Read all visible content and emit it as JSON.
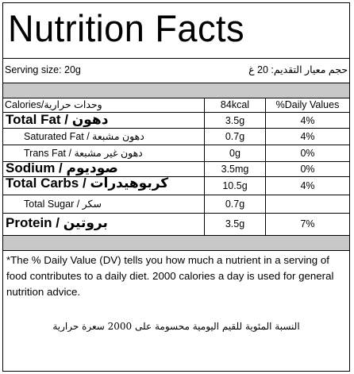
{
  "title": "Nutrition Facts",
  "serving": {
    "label_en": "Serving size: 20g",
    "label_ar": "حجم معيار التقديم: 20 غ"
  },
  "header": {
    "calories_label": "Calories/وحدات حرارية",
    "calories_value": "84kcal",
    "daily_values": "%Daily Values"
  },
  "rows": [
    {
      "name": "Total Fat / دهون",
      "amount": "3.5g",
      "dv": "4%"
    },
    {
      "name": "Saturated Fat / دهون مشبعة",
      "amount": "0.7g",
      "dv": "4%"
    },
    {
      "name": "Trans Fat / دهون غير مشبعة",
      "amount": "0g",
      "dv": "0%"
    },
    {
      "name": "Sodium / صوديوم",
      "amount": "3.5mg",
      "dv": "0%"
    },
    {
      "name": "Total Carbs / كربوهيدرات",
      "amount": "10.5g",
      "dv": "4%"
    },
    {
      "name": "Total Sugar / سكر",
      "amount": "0.7g",
      "dv": ""
    },
    {
      "name": "Protein / بروتين",
      "amount": "3.5g",
      "dv": "7%"
    }
  ],
  "footnote_en": "*The % Daily Value (DV) tells you how much a nutrient in a serving of food contributes to a daily diet. 2000 calories a day is used for general nutrition advice.",
  "footnote_ar": "النسبة المئوية للقيم اليومية محسومة على 2000 سعرة حرارية"
}
